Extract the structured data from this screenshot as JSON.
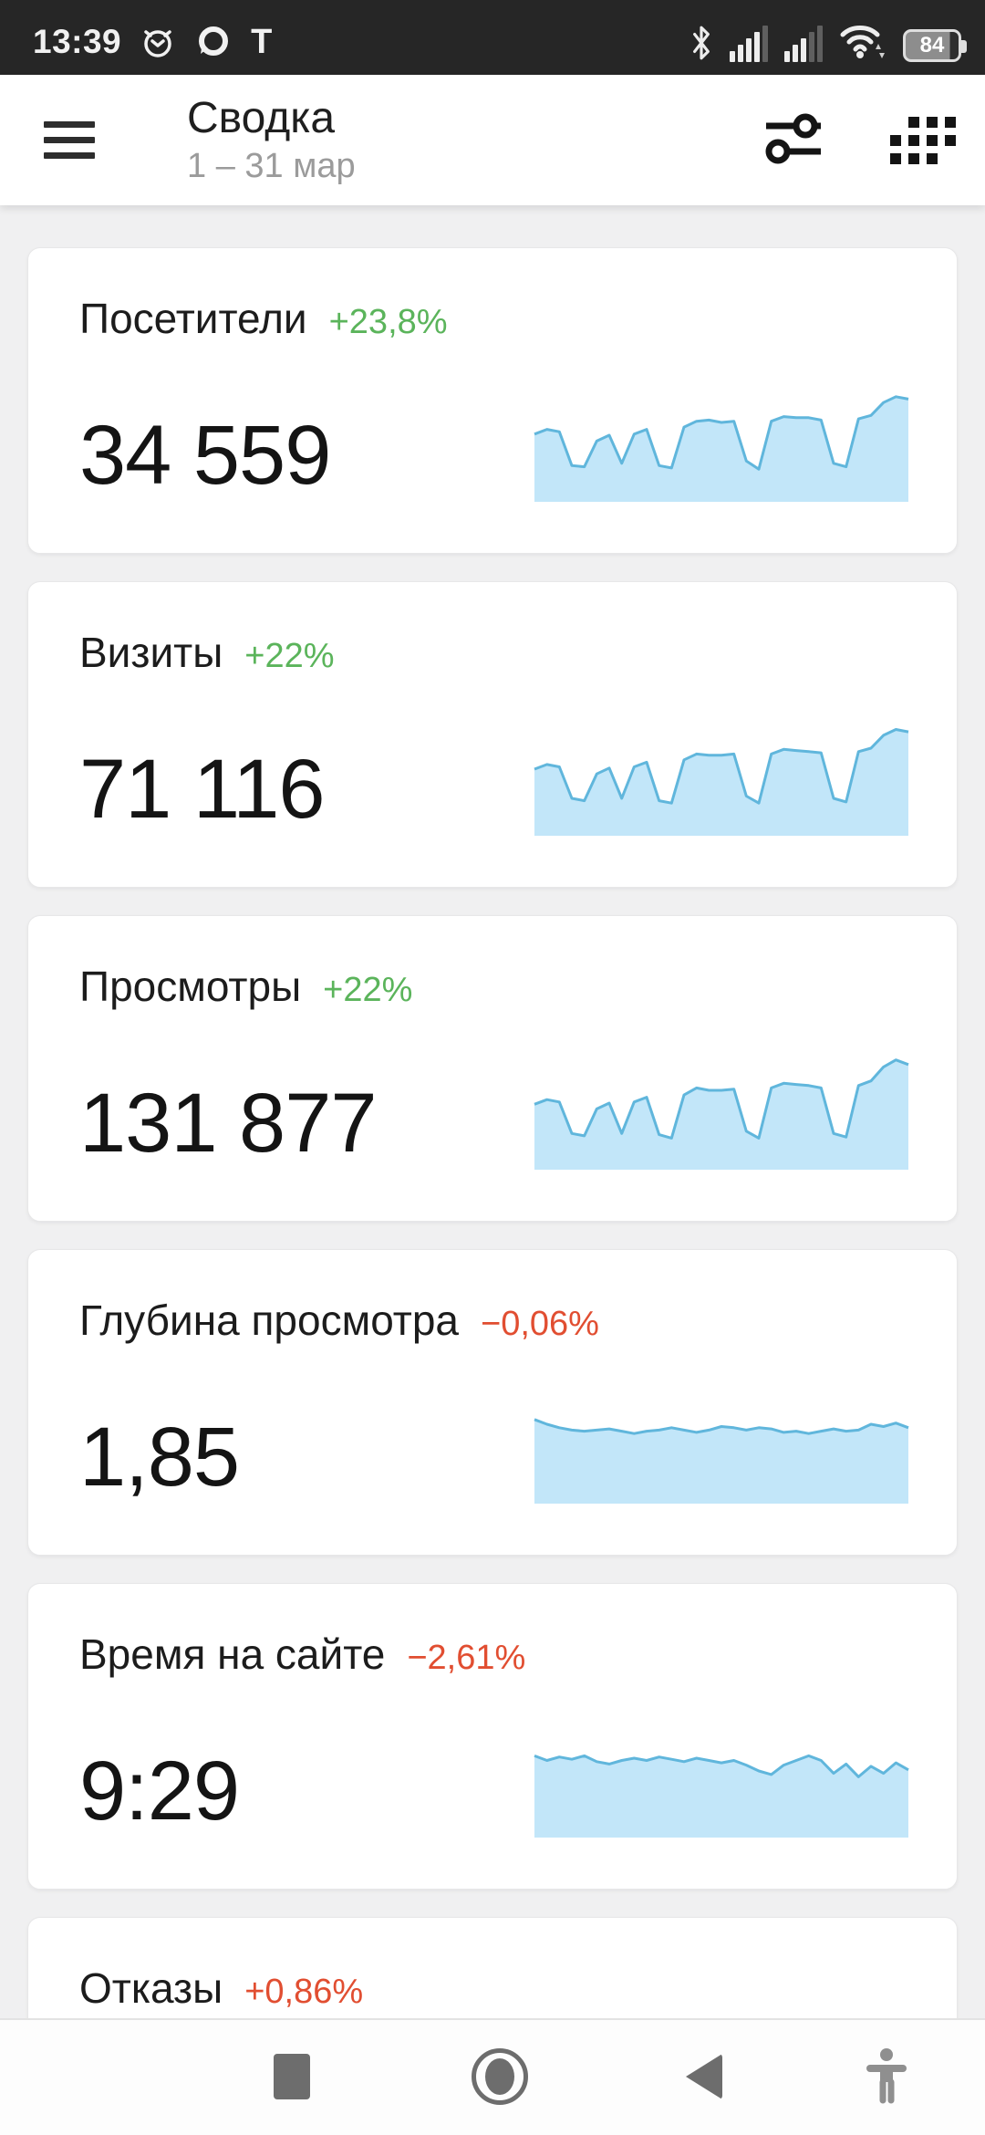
{
  "status_bar": {
    "time": "13:39",
    "letter_icon": "T",
    "battery_percent": "84",
    "left_icons": [
      "alarm-icon",
      "chat-bubble-icon",
      "letter-t-icon"
    ],
    "right_icons": [
      "bluetooth-icon",
      "signal-sim1-icon",
      "signal-sim2-icon",
      "wifi-icon",
      "battery-icon"
    ]
  },
  "header": {
    "title": "Сводка",
    "date_range": "1 – 31 мар",
    "action_icons": [
      "filter-sliders-icon",
      "counters-grid-icon"
    ]
  },
  "cards": [
    {
      "title": "Посетители",
      "delta": "+23,8%",
      "tone": "good",
      "value": "34 559",
      "spark": [
        0.58,
        0.62,
        0.6,
        0.31,
        0.3,
        0.52,
        0.57,
        0.33,
        0.58,
        0.62,
        0.31,
        0.29,
        0.64,
        0.69,
        0.7,
        0.68,
        0.69,
        0.35,
        0.28,
        0.69,
        0.73,
        0.72,
        0.72,
        0.7,
        0.33,
        0.3,
        0.71,
        0.74,
        0.85,
        0.9,
        0.88
      ]
    },
    {
      "title": "Визиты",
      "delta": "+22%",
      "tone": "good",
      "value": "71 116",
      "spark": [
        0.57,
        0.61,
        0.59,
        0.32,
        0.3,
        0.53,
        0.58,
        0.32,
        0.59,
        0.63,
        0.3,
        0.28,
        0.65,
        0.7,
        0.69,
        0.69,
        0.7,
        0.34,
        0.28,
        0.7,
        0.74,
        0.73,
        0.72,
        0.71,
        0.32,
        0.29,
        0.72,
        0.75,
        0.86,
        0.91,
        0.89
      ]
    },
    {
      "title": "Просмотры",
      "delta": "+22%",
      "tone": "good",
      "value": "131 877",
      "spark": [
        0.56,
        0.6,
        0.58,
        0.31,
        0.29,
        0.52,
        0.57,
        0.31,
        0.58,
        0.62,
        0.3,
        0.27,
        0.64,
        0.7,
        0.68,
        0.68,
        0.69,
        0.33,
        0.27,
        0.7,
        0.74,
        0.73,
        0.72,
        0.7,
        0.31,
        0.28,
        0.72,
        0.76,
        0.88,
        0.94,
        0.9
      ]
    },
    {
      "title": "Глубина просмотра",
      "delta": "−0,06%",
      "tone": "bad",
      "value": "1,85",
      "spark": [
        0.72,
        0.68,
        0.65,
        0.63,
        0.62,
        0.63,
        0.64,
        0.62,
        0.6,
        0.62,
        0.63,
        0.65,
        0.63,
        0.61,
        0.63,
        0.66,
        0.65,
        0.63,
        0.65,
        0.64,
        0.61,
        0.62,
        0.6,
        0.62,
        0.64,
        0.62,
        0.63,
        0.68,
        0.66,
        0.69,
        0.65
      ]
    },
    {
      "title": "Время на сайте",
      "delta": "−2,61%",
      "tone": "bad",
      "value": "9:29",
      "spark": [
        0.7,
        0.66,
        0.69,
        0.67,
        0.7,
        0.65,
        0.63,
        0.66,
        0.68,
        0.66,
        0.69,
        0.67,
        0.65,
        0.68,
        0.66,
        0.64,
        0.66,
        0.62,
        0.57,
        0.54,
        0.62,
        0.66,
        0.7,
        0.66,
        0.55,
        0.63,
        0.52,
        0.61,
        0.55,
        0.64,
        0.58
      ]
    },
    {
      "title": "Отказы",
      "delta": "+0,86%",
      "tone": "bad",
      "value": "",
      "spark": []
    }
  ],
  "nav": {
    "buttons": [
      "recents-icon",
      "home-icon",
      "back-icon",
      "accessibility-icon"
    ]
  },
  "colors": {
    "delta_up": "#5bb45b",
    "delta_down": "#e14e31",
    "spark_fill": "#c2e6f9",
    "spark_stroke": "#60b6dc",
    "status_bar_bg": "#262626",
    "page_bg": "#f0f0f1",
    "card_bg": "#ffffff"
  }
}
